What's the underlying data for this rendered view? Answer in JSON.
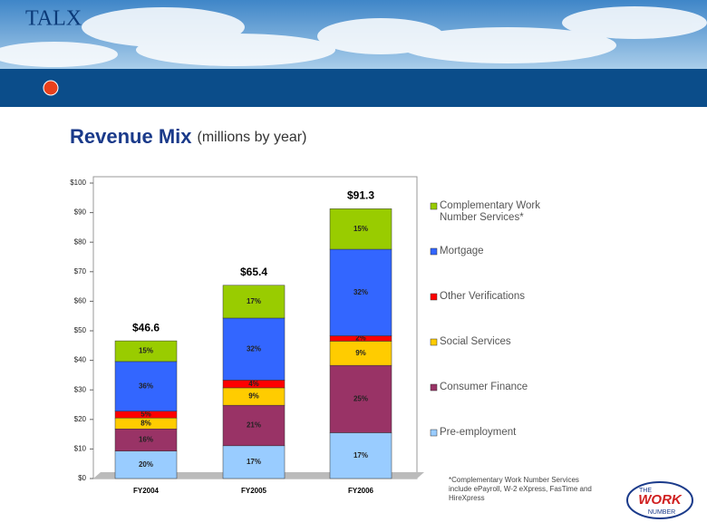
{
  "header": {
    "logo": "TALX"
  },
  "chart_data": {
    "type": "stacked-bar",
    "title": "Revenue Mix",
    "subtitle": "(millions by year)",
    "categories": [
      "FY2004",
      "FY2005",
      "FY2006"
    ],
    "series": [
      {
        "name": "Pre-employment",
        "color": "#99ccff",
        "values": [
          9.3,
          11.1,
          15.5
        ],
        "value_labels": [
          "20%",
          "17%",
          "17%"
        ]
      },
      {
        "name": "Consumer Finance",
        "color": "#993366",
        "values": [
          7.5,
          13.7,
          22.8
        ],
        "value_labels": [
          "16%",
          "21%",
          "25%"
        ]
      },
      {
        "name": "Social Services",
        "color": "#ffcc00",
        "values": [
          3.7,
          5.9,
          8.2
        ],
        "value_labels": [
          "8%",
          "9%",
          "9%"
        ]
      },
      {
        "name": "Other Verifications",
        "color": "#ff0000",
        "values": [
          2.3,
          2.6,
          1.8
        ],
        "value_labels": [
          "5%",
          "4%",
          "2%"
        ]
      },
      {
        "name": "Mortgage",
        "color": "#3366ff",
        "values": [
          16.8,
          21.0,
          29.3
        ],
        "value_labels": [
          "36%",
          "32%",
          "32%"
        ]
      },
      {
        "name": "Complementary Work Number Services*",
        "color": "#99cc00",
        "values": [
          7.0,
          11.1,
          13.7
        ],
        "value_labels": [
          "15%",
          "17%",
          "15%"
        ]
      }
    ],
    "totals": [
      46.6,
      65.4,
      91.3
    ],
    "total_labels": [
      "$46.6",
      "$65.4",
      "$91.3"
    ],
    "ylim": [
      0,
      100
    ],
    "yticks": [
      {
        "value": 0,
        "label": "$0"
      },
      {
        "value": 10,
        "label": "$10"
      },
      {
        "value": 20,
        "label": "$20"
      },
      {
        "value": 30,
        "label": "$30"
      },
      {
        "value": 40,
        "label": "$40"
      },
      {
        "value": 50,
        "label": "$50"
      },
      {
        "value": 60,
        "label": "$60"
      },
      {
        "value": 70,
        "label": "$70"
      },
      {
        "value": 80,
        "label": "$80"
      },
      {
        "value": 90,
        "label": "$90"
      },
      {
        "value": 100,
        "label": "$100"
      }
    ],
    "grid": false,
    "legend": "right",
    "footnote": "*Complementary Work Number Services include ePayroll, W-2 eXpress, FasTime and HireXpress"
  },
  "logo": {
    "the": "THE",
    "work": "WORK",
    "number": "NUMBER"
  }
}
